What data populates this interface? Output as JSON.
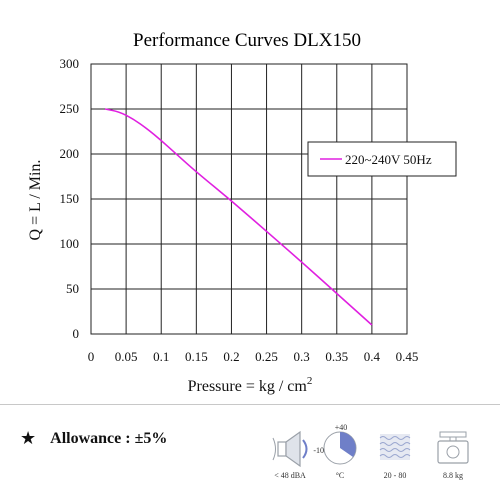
{
  "chart_data": {
    "type": "line",
    "title": "Performance  Curves  DLX150",
    "xlabel": "Pressure = kg / cm",
    "xlabel_sup": "2",
    "ylabel": "Q = L / Min.",
    "xlim": [
      0,
      0.45
    ],
    "ylim": [
      0,
      300
    ],
    "xticks": [
      "0",
      "0.05",
      "0.1",
      "0.15",
      "0.2",
      "0.25",
      "0.3",
      "0.35",
      "0.4",
      "0.45"
    ],
    "yticks": [
      "0",
      "50",
      "100",
      "150",
      "200",
      "250",
      "300"
    ],
    "grid": true,
    "legend_position": "right",
    "series": [
      {
        "name": "220~240V 50Hz",
        "color": "#e020e0",
        "x": [
          0.02,
          0.04,
          0.06,
          0.08,
          0.1,
          0.12,
          0.15,
          0.2,
          0.25,
          0.3,
          0.35,
          0.4
        ],
        "y": [
          250,
          247,
          239,
          228,
          215,
          201,
          180,
          148,
          114,
          80,
          45,
          10
        ]
      }
    ]
  },
  "footer": {
    "star": "★",
    "allowance": "Allowance : ±5%"
  },
  "icons": {
    "noise": {
      "name": "speaker-icon",
      "caption": "< 48 dBA"
    },
    "temperature": {
      "name": "temperature-range-icon",
      "caption": "°C",
      "max": "+40",
      "min": "-10"
    },
    "humidity": {
      "name": "humidity-icon",
      "caption": "20 - 80"
    },
    "weight": {
      "name": "scale-weight-icon",
      "caption": "8.8 kg"
    }
  },
  "colors": {
    "icon_accent": "#6f7fc8",
    "icon_gray": "#9aa0a8"
  }
}
